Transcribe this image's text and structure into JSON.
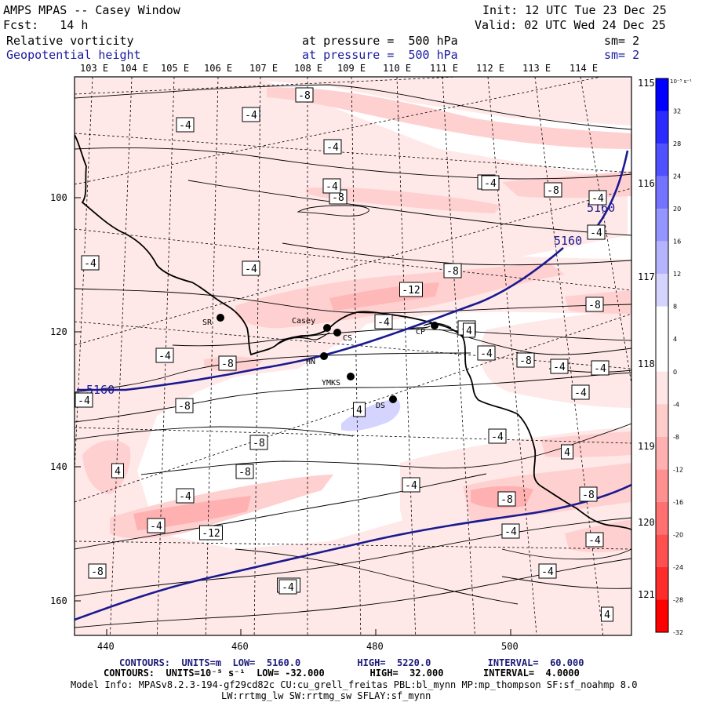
{
  "header": {
    "title": "AMPS MPAS -- Casey Window",
    "init": "Init: 12 UTC Tue 23 Dec 25",
    "fcst": "Fcst:   14 h",
    "valid": "Valid: 02 UTC Wed 24 Dec 25",
    "field1": "Relative vorticity",
    "field1_level": "at pressure =  500 hPa",
    "field1_sm": "sm= 2",
    "field2": "Geopotential height",
    "field2_level": "at pressure =  500 hPa",
    "field2_sm": "sm= 2"
  },
  "map": {
    "lon_labels_top": [
      "103 E",
      "104 E",
      "105 E",
      "106 E",
      "107 E",
      "108 E",
      "109 E",
      "110 E",
      "111 E",
      "112 E",
      "113 E",
      "114 E"
    ],
    "lon_labels_right": [
      "115 E",
      "116 E",
      "117 E",
      "118 E",
      "119 E",
      "120 E",
      "121 E"
    ],
    "x_axis_ticks": [
      "440",
      "460",
      "480",
      "500"
    ],
    "y_axis_ticks": [
      "100",
      "120",
      "140",
      "160"
    ],
    "stations": [
      {
        "name": "SR"
      },
      {
        "name": "Casey"
      },
      {
        "name": "CS"
      },
      {
        "name": "HN"
      },
      {
        "name": "YMKS"
      },
      {
        "name": "DS"
      },
      {
        "name": "CP"
      }
    ],
    "height_contour_labels": [
      "5160",
      "5160",
      "5160"
    ],
    "vorticity_labels": [
      "-8",
      "-4",
      "-4",
      "-4",
      "-4",
      "-8",
      "-4",
      "-8",
      "-4",
      "-4",
      "-4",
      "-12",
      "-8",
      "-8",
      "-4",
      "-8",
      "-4",
      "-4",
      "-8",
      "-4",
      "-8",
      "-4",
      "-4",
      "-4",
      "-8",
      "4",
      "-8",
      "-4",
      "4",
      "4",
      "-8",
      "-4",
      "-4",
      "-8",
      "-8",
      "-12",
      "-4",
      "-4",
      "-4",
      "-8",
      "-12",
      "-4",
      "4",
      "-4",
      "-4",
      "-4",
      "4"
    ]
  },
  "colorbar": {
    "unit": "10⁻⁵ s⁻¹",
    "labels": [
      "32",
      "28",
      "24",
      "20",
      "16",
      "12",
      "8",
      "4",
      "0",
      "-4",
      "-8",
      "-12",
      "-16",
      "-20",
      "-24",
      "-28",
      "-32"
    ],
    "colors": [
      "#0000ff",
      "#2b2bff",
      "#5050ff",
      "#7373ff",
      "#9595ff",
      "#b5b5ff",
      "#d4d4ff",
      "#ffffff",
      "#ffffff",
      "#ffe6e6",
      "#ffcccc",
      "#ffb0b0",
      "#ff9090",
      "#ff7070",
      "#ff5050",
      "#ff2c2c",
      "#ff0000"
    ]
  },
  "footer": {
    "line1": "CONTOURS:  UNITS=m  LOW=  5160.0          HIGH=  5220.0          INTERVAL=  60.000",
    "line2": "CONTOURS:  UNITS=10⁻⁵ s⁻¹  LOW= -32.000        HIGH=  32.000       INTERVAL=  4.0000",
    "line3": "Model Info: MPASv8.2.3-194-gf29cd82c CU:cu_grell_freitas PBL:bl_mynn MP:mp_thompson SF:sf_noahmp 8.0",
    "line4": "LW:rrtmg_lw SW:rrtmg_sw SFLAY:sf_mynn"
  }
}
